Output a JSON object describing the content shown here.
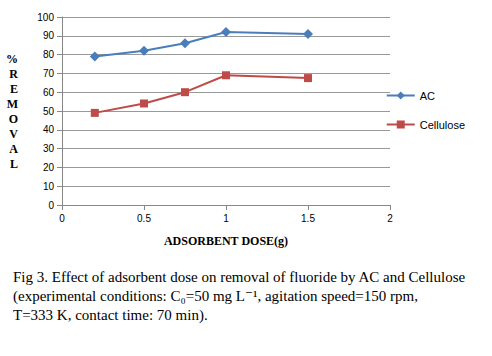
{
  "chart_data": {
    "type": "line",
    "x_label": "ADSORBENT DOSE(g)",
    "y_label": "% REMOVAL",
    "caption": "Fig 3. Effect of adsorbent dose on removal of fluoride by AC and Cellulose (experimental conditions: C₀=50 mg L⁻¹, agitation speed=150 rpm, T=333 K, contact time: 70 min).",
    "x": [
      0.2,
      0.5,
      0.75,
      1,
      1.5
    ],
    "series": [
      {
        "name": "AC",
        "color": "#4a7ebb",
        "marker": "diamond",
        "values": [
          79,
          82,
          86,
          92,
          91
        ]
      },
      {
        "name": "Cellulose",
        "color": "#be4b48",
        "marker": "square",
        "values": [
          49,
          54,
          60,
          69,
          67.5
        ]
      }
    ],
    "xlim": [
      0,
      2
    ],
    "xticks": [
      0,
      0.5,
      1,
      1.5,
      2
    ],
    "ylim": [
      0,
      100
    ],
    "yticks": [
      0,
      10,
      20,
      30,
      40,
      50,
      60,
      70,
      80,
      90,
      100
    ],
    "grid": true,
    "legend": "right"
  }
}
